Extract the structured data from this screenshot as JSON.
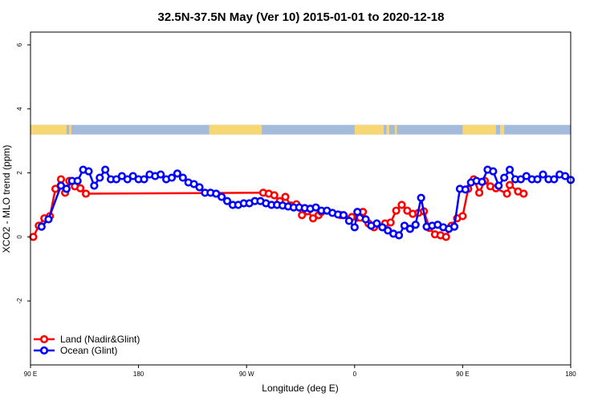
{
  "chart_data": {
    "type": "line",
    "title": "32.5N-37.5N May (Ver 10)   2015-01-01 to 2020-12-18",
    "xlabel": "Longitude (deg E)",
    "ylabel": "XCO2 - MLO trend (ppm)",
    "xlim": [
      90,
      480
    ],
    "ylim": [
      -4,
      6.4
    ],
    "x_ticks": [
      90,
      168,
      246,
      324,
      402,
      480
    ],
    "x_tick_labels": [
      "90 E",
      "180",
      "90 W",
      "0",
      "90 E",
      "180"
    ],
    "y_ticks": [
      -2,
      0,
      2,
      4,
      6
    ],
    "y_tick_labels": [
      "-2",
      "0",
      "2",
      "4",
      "6"
    ],
    "land_sea_strip": {
      "y_range": [
        3.2,
        3.5
      ],
      "land_color": "#f7d774",
      "ocean_color": "#a4bcdc",
      "land_segments": [
        [
          90,
          116
        ],
        [
          118,
          119.5
        ],
        [
          219,
          257
        ],
        [
          324,
          345
        ],
        [
          347,
          349
        ],
        [
          353,
          354.5
        ],
        [
          402,
          426
        ],
        [
          429,
          432
        ]
      ]
    },
    "grid": false,
    "legend_position": "bottom-left",
    "series": [
      {
        "name": "Land (Nadir&Glint)",
        "color": "#ff0000",
        "x": [
          92,
          96,
          100,
          104,
          108,
          112,
          115,
          118,
          122,
          126,
          130,
          258,
          262,
          266,
          270,
          274,
          278,
          282,
          286,
          290,
          294,
          298,
          300,
          314,
          322,
          326,
          328,
          330,
          334,
          338,
          346,
          350,
          354,
          358,
          362,
          366,
          370,
          374,
          378,
          382,
          386,
          390,
          394,
          398,
          402,
          406,
          410,
          414,
          418,
          422,
          426,
          434,
          436,
          442,
          446
        ],
        "values": [
          0.0,
          0.35,
          0.58,
          0.65,
          1.5,
          1.8,
          1.38,
          1.75,
          1.58,
          1.52,
          1.35,
          1.38,
          1.35,
          1.3,
          1.12,
          1.25,
          0.98,
          1.02,
          0.68,
          0.8,
          0.58,
          0.68,
          0.78,
          0.68,
          0.62,
          0.6,
          0.6,
          0.78,
          0.42,
          0.3,
          0.42,
          0.45,
          0.82,
          1.0,
          0.82,
          0.72,
          0.75,
          0.8,
          0.28,
          0.08,
          0.05,
          0.0,
          0.35,
          0.58,
          0.65,
          1.5,
          1.8,
          1.38,
          1.75,
          1.58,
          1.52,
          1.35,
          1.62,
          1.42,
          1.35
        ]
      },
      {
        "name": "Ocean (Glint)",
        "color": "#0000ff",
        "x": [
          98,
          103,
          112,
          116,
          120,
          124,
          128,
          132,
          136,
          140,
          144,
          148,
          152,
          156,
          160,
          164,
          168,
          172,
          176,
          180,
          184,
          188,
          192,
          196,
          200,
          204,
          208,
          212,
          216,
          220,
          224,
          228,
          232,
          236,
          240,
          244,
          248,
          252,
          256,
          260,
          264,
          268,
          272,
          276,
          280,
          284,
          288,
          292,
          296,
          300,
          304,
          308,
          312,
          316,
          320,
          324,
          326,
          332,
          336,
          340,
          344,
          348,
          352,
          356,
          360,
          364,
          368,
          372,
          376,
          380,
          384,
          388,
          392,
          396,
          400,
          404,
          408,
          412,
          416,
          420,
          424,
          428,
          432,
          436,
          440,
          444,
          448,
          452,
          456,
          460,
          464,
          468,
          472,
          476,
          480
        ],
        "values": [
          0.32,
          0.55,
          1.6,
          1.5,
          1.75,
          1.75,
          2.1,
          2.05,
          1.6,
          1.85,
          2.1,
          1.8,
          1.8,
          1.9,
          1.8,
          1.9,
          1.8,
          1.8,
          1.95,
          1.9,
          1.95,
          1.8,
          1.85,
          1.98,
          1.85,
          1.7,
          1.65,
          1.55,
          1.38,
          1.38,
          1.35,
          1.25,
          1.12,
          1.0,
          1.0,
          1.05,
          1.05,
          1.12,
          1.12,
          1.05,
          1.0,
          1.0,
          0.98,
          0.95,
          0.92,
          0.92,
          0.9,
          0.88,
          0.92,
          0.82,
          0.82,
          0.75,
          0.7,
          0.68,
          0.5,
          0.3,
          0.78,
          0.55,
          0.35,
          0.42,
          0.3,
          0.2,
          0.1,
          0.05,
          0.35,
          0.25,
          0.38,
          1.22,
          0.32,
          0.35,
          0.38,
          0.3,
          0.25,
          0.32,
          1.5,
          1.48,
          1.7,
          1.75,
          1.72,
          2.1,
          2.05,
          1.6,
          1.85,
          2.1,
          1.8,
          1.8,
          1.9,
          1.8,
          1.8,
          1.95,
          1.8,
          1.8,
          1.95,
          1.9,
          1.78
        ]
      }
    ]
  }
}
